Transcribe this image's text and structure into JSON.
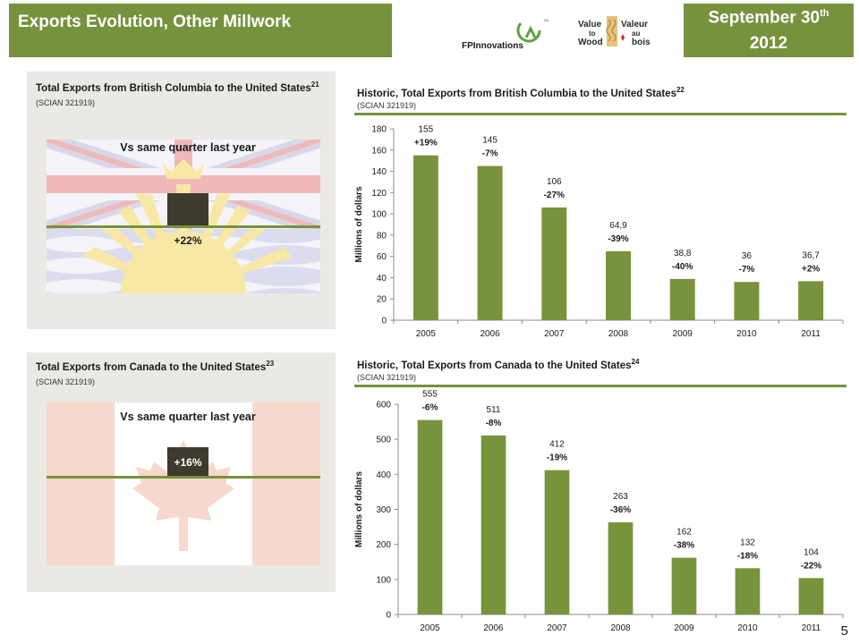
{
  "header": {
    "title": "Exports Evolution, Other Millwork",
    "date_line1": "September 30",
    "date_sup": "th",
    "date_line2": "2012"
  },
  "logos": {
    "fpinnovations": "FPInnovations",
    "tm": "TM",
    "vtw_line1": "Value",
    "vtw_line2": "to",
    "vtw_line3": "Wood",
    "vab_line1": "Valeur",
    "vab_line2": "au",
    "vab_line3": "bois"
  },
  "bc_panel": {
    "title": "Total Exports from British Columbia to the United States",
    "footnote": "21",
    "sub": "(SCIAN 321919)",
    "vs_label": "Vs same quarter last year",
    "change": "+22%"
  },
  "canada_panel": {
    "title": "Total Exports from Canada to the United States",
    "footnote": "23",
    "sub": "(SCIAN 321919)",
    "vs_label": "Vs same quarter last year",
    "change": "+16%"
  },
  "colors": {
    "accent": "#76923c",
    "bar": "#77933c",
    "panel_bg": "#eae9e4",
    "indicator": "#3e3b2e"
  },
  "chart_data": [
    {
      "type": "bar",
      "title": "Historic, Total Exports from British Columbia to the United States",
      "footnote": "22",
      "subtitle": "(SCIAN 321919)",
      "xlabel": "",
      "ylabel": "Millions of dollars",
      "categories": [
        "2005",
        "2006",
        "2007",
        "2008",
        "2009",
        "2010",
        "2011"
      ],
      "values": [
        155,
        145,
        106,
        64.9,
        38.8,
        36,
        36.7
      ],
      "value_labels": [
        "155",
        "145",
        "106",
        "64,9",
        "38,8",
        "36",
        "36,7"
      ],
      "pct_labels": [
        "+19%",
        "-7%",
        "-27%",
        "-39%",
        "-40%",
        "-7%",
        "+2%"
      ],
      "ylim": [
        0,
        180
      ],
      "yticks": [
        0,
        20,
        40,
        60,
        80,
        100,
        120,
        140,
        160,
        180
      ],
      "grid": false,
      "legend": "none"
    },
    {
      "type": "bar",
      "title": "Historic, Total Exports from Canada to the United States",
      "footnote": "24",
      "subtitle": "(SCIAN 321919)",
      "xlabel": "",
      "ylabel": "Millions of dollars",
      "categories": [
        "2005",
        "2006",
        "2007",
        "2008",
        "2009",
        "2010",
        "2011"
      ],
      "values": [
        555,
        511,
        412,
        263,
        162,
        132,
        104
      ],
      "value_labels": [
        "555",
        "511",
        "412",
        "263",
        "162",
        "132",
        "104"
      ],
      "pct_labels": [
        "-6%",
        "-8%",
        "-19%",
        "-36%",
        "-38%",
        "-18%",
        "-22%"
      ],
      "ylim": [
        0,
        600
      ],
      "yticks": [
        0,
        100,
        200,
        300,
        400,
        500,
        600
      ],
      "grid": false,
      "legend": "none"
    }
  ],
  "page_number": "5"
}
